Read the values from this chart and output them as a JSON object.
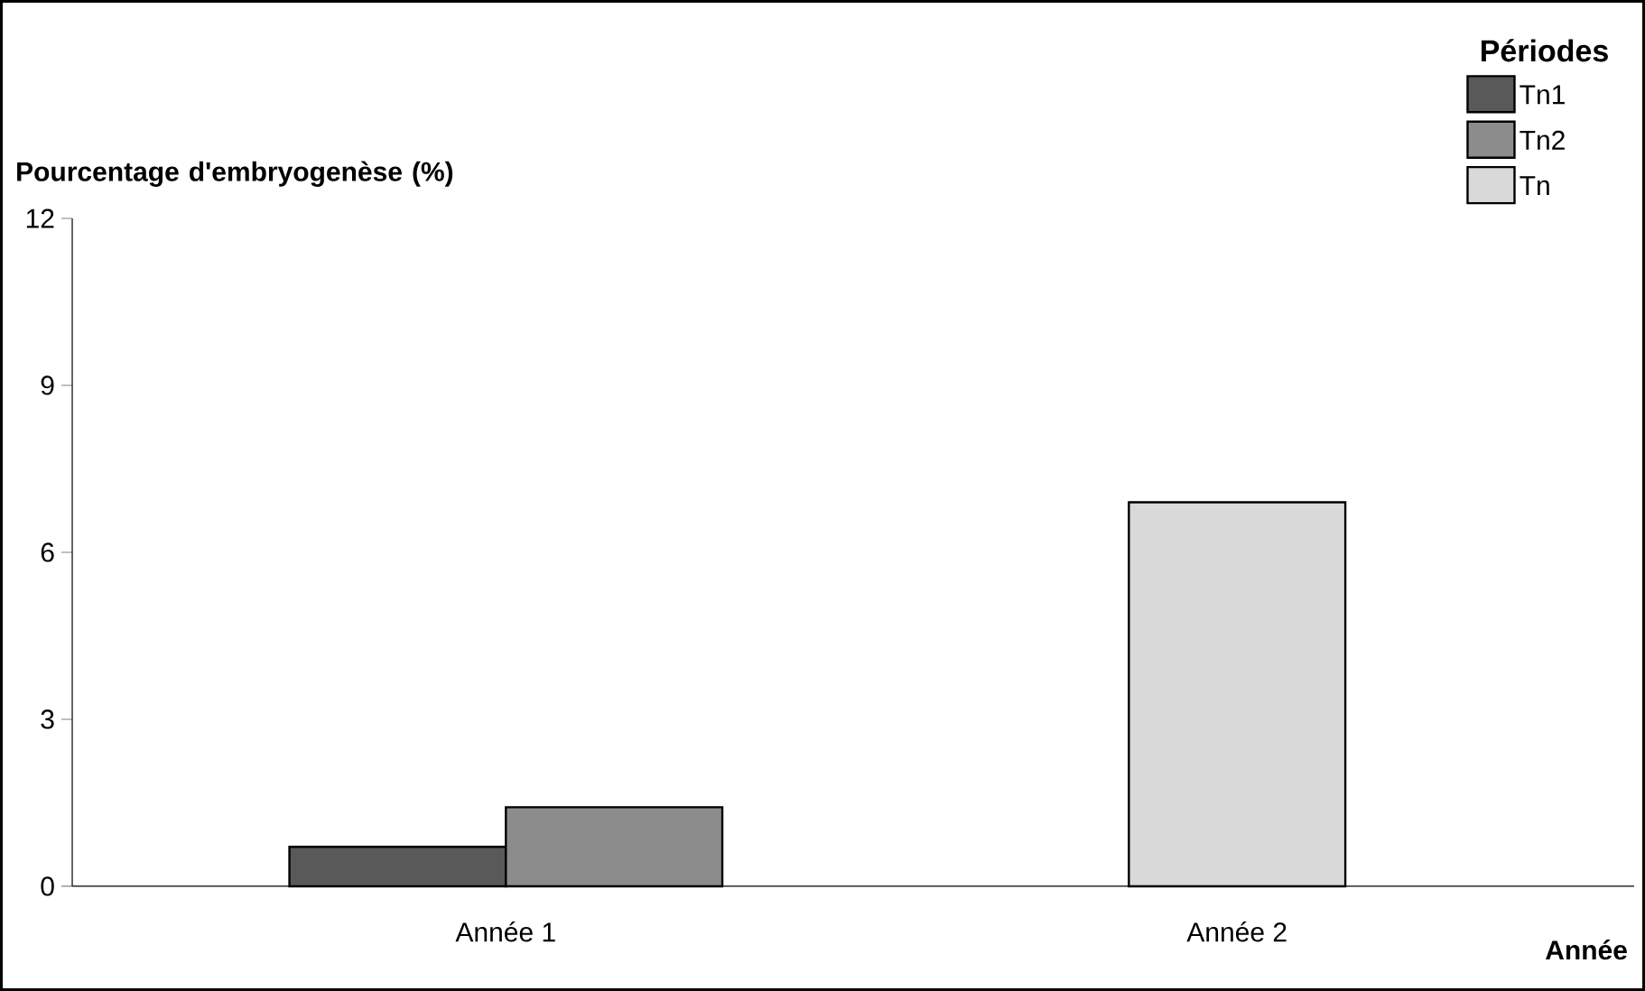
{
  "chart_data": {
    "type": "bar",
    "ylabel": "Pourcentage d'embryogenèse (%)",
    "xlabel": "Année",
    "legend_title": "Périodes",
    "categories": [
      "Année 1",
      "Année 2"
    ],
    "series": [
      {
        "name": "Tn1",
        "color": "#595959",
        "values": [
          0.71,
          null
        ]
      },
      {
        "name": "Tn2",
        "color": "#8c8c8c",
        "values": [
          1.42,
          null
        ]
      },
      {
        "name": "Tn",
        "color": "#d9d9d9",
        "values": [
          null,
          6.9
        ]
      }
    ],
    "ylim": [
      0,
      12
    ],
    "yticks": [
      0,
      3,
      6,
      9,
      12
    ],
    "grid": false,
    "legend": "top right"
  }
}
